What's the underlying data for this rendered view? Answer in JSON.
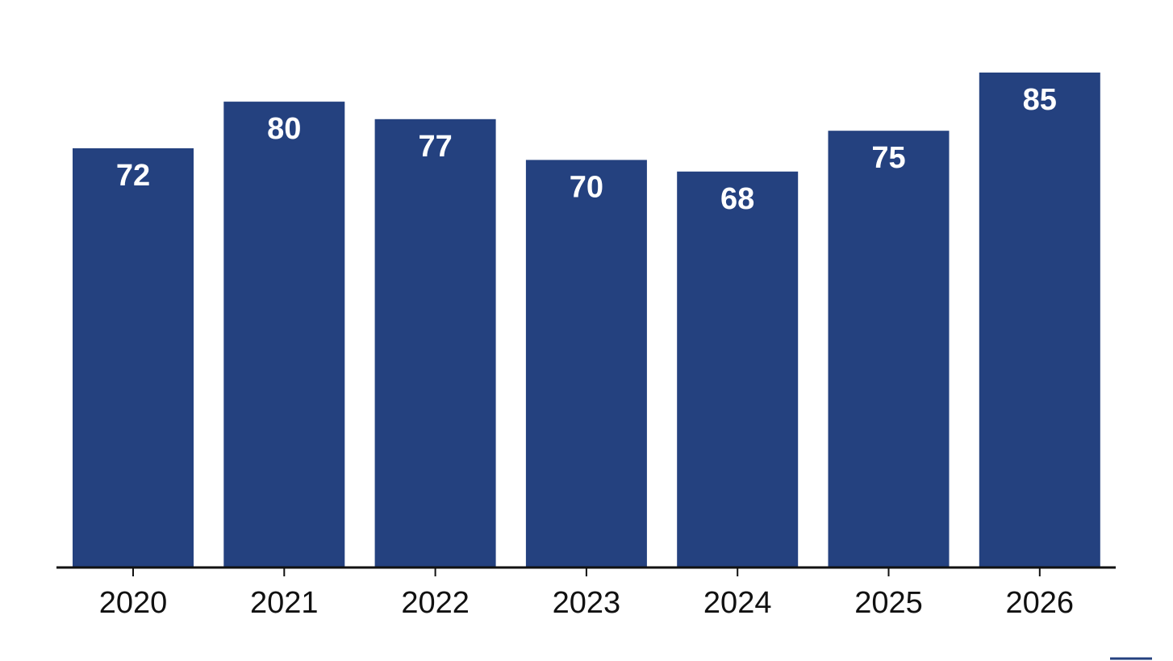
{
  "chart_data": {
    "type": "bar",
    "categories": [
      "2020",
      "2021",
      "2022",
      "2023",
      "2024",
      "2025",
      "2026"
    ],
    "values": [
      72,
      80,
      77,
      70,
      68,
      75,
      85
    ],
    "title": "",
    "xlabel": "",
    "ylabel": "",
    "ylim": [
      0,
      85
    ],
    "grid": false,
    "data_labels": "inside-top",
    "legend": "none",
    "colors": {
      "bar": "#24417F",
      "axis": "#111111",
      "label_text": "#ffffff",
      "tick_text": "#111111",
      "background": "#ffffff"
    }
  }
}
